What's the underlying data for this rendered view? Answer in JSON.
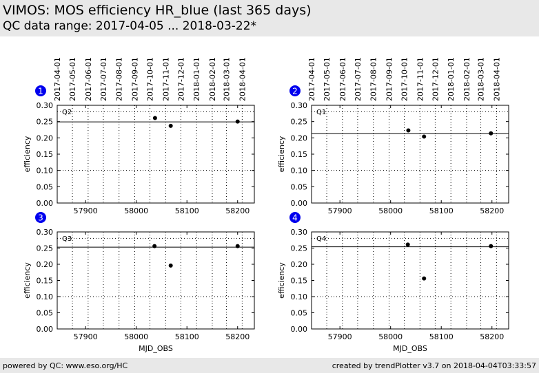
{
  "header": {
    "title": "VIMOS: MOS efficiency HR_blue (last 365 days)",
    "subtitle": "QC data range: 2017-04-05 ... 2018-03-22*"
  },
  "footer": {
    "left": "powered by QC: www.eso.org/HC",
    "right": "created by trendPlotter v3.7 on 2018-04-04T03:33:57"
  },
  "chart_data": {
    "type": "scatter",
    "xlabel": "MJD_OBS",
    "ylabel": "efficiency",
    "xlim": [
      57844,
      58233
    ],
    "ylim": [
      0.0,
      0.3
    ],
    "x_ticks": [
      57900,
      58000,
      58100,
      58200
    ],
    "y_ticks": [
      0.0,
      0.05,
      0.1,
      0.15,
      0.2,
      0.25,
      0.3
    ],
    "date_ticks": [
      {
        "label": "2017-04-01",
        "mjd": 57844
      },
      {
        "label": "2017-05-01",
        "mjd": 57874
      },
      {
        "label": "2017-06-01",
        "mjd": 57905
      },
      {
        "label": "2017-07-01",
        "mjd": 57935
      },
      {
        "label": "2017-08-01",
        "mjd": 57966
      },
      {
        "label": "2017-09-01",
        "mjd": 57997
      },
      {
        "label": "2017-10-01",
        "mjd": 58027
      },
      {
        "label": "2017-11-01",
        "mjd": 58058
      },
      {
        "label": "2017-12-01",
        "mjd": 58088
      },
      {
        "label": "2018-01-01",
        "mjd": 58119
      },
      {
        "label": "2018-02-01",
        "mjd": 58150
      },
      {
        "label": "2018-03-01",
        "mjd": 58178
      },
      {
        "label": "2018-04-01",
        "mjd": 58209
      }
    ],
    "y_dotted_lines": [
      0.1,
      0.28
    ],
    "panels": [
      {
        "number": "1",
        "label": "Q2",
        "reference": 0.249,
        "points": [
          {
            "x": 58037,
            "y": 0.261
          },
          {
            "x": 58068,
            "y": 0.237
          },
          {
            "x": 58200,
            "y": 0.25
          }
        ]
      },
      {
        "number": "2",
        "label": "Q1",
        "reference": 0.213,
        "points": [
          {
            "x": 58035,
            "y": 0.223
          },
          {
            "x": 58066,
            "y": 0.204
          },
          {
            "x": 58198,
            "y": 0.214
          }
        ]
      },
      {
        "number": "3",
        "label": "Q3",
        "reference": 0.253,
        "points": [
          {
            "x": 58036,
            "y": 0.256
          },
          {
            "x": 58068,
            "y": 0.196
          },
          {
            "x": 58200,
            "y": 0.256
          }
        ]
      },
      {
        "number": "4",
        "label": "Q4",
        "reference": 0.254,
        "points": [
          {
            "x": 58034,
            "y": 0.261
          },
          {
            "x": 58066,
            "y": 0.156
          },
          {
            "x": 58198,
            "y": 0.256
          }
        ]
      }
    ],
    "colors": {
      "badge": "#0000ee",
      "grid": "#000000",
      "point": "#000000"
    },
    "grid": true
  }
}
